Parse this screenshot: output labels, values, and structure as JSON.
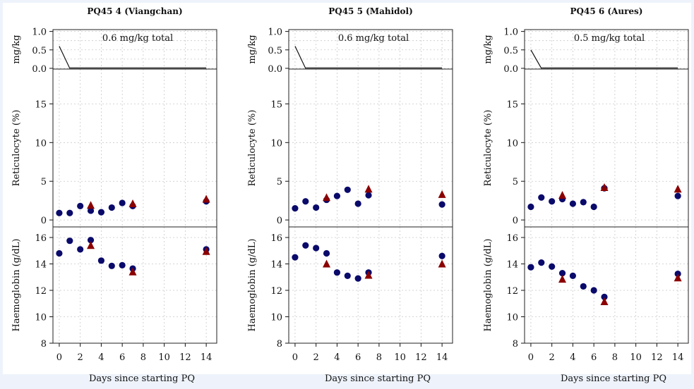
{
  "chart_data": [
    {
      "type": "scatter",
      "title": "PQ45 4 (Viangchan)",
      "xlabel": "Days since starting PQ",
      "x_ticks": [
        0,
        2,
        4,
        6,
        8,
        10,
        12,
        14
      ],
      "xlim": [
        -0.6,
        15
      ],
      "dose": {
        "ylabel": "mg/kg",
        "annotation": "0.6 mg/kg total",
        "ylim": [
          0,
          1.0
        ],
        "y_ticks": [
          "0.0",
          "0.5",
          "1.0"
        ],
        "line": [
          [
            0,
            0.6
          ],
          [
            1,
            0.0
          ],
          [
            14,
            0.0
          ]
        ]
      },
      "reticulocyte": {
        "ylabel": "Reticulocyte (%)",
        "ylim": [
          0,
          19
        ],
        "y_ticks": [
          0,
          5,
          10,
          15
        ],
        "series": [
          {
            "marker": "circle",
            "color": "#0a0a6b",
            "points": [
              [
                0,
                0.9
              ],
              [
                1,
                0.9
              ],
              [
                2,
                1.8
              ],
              [
                3,
                1.2
              ],
              [
                4,
                1.0
              ],
              [
                5,
                1.6
              ],
              [
                6,
                2.2
              ],
              [
                7,
                1.8
              ],
              [
                14,
                2.4
              ]
            ]
          },
          {
            "marker": "triangle",
            "color": "#8b0000",
            "points": [
              [
                3,
                1.9
              ],
              [
                7,
                2.1
              ],
              [
                14,
                2.7
              ]
            ]
          }
        ]
      },
      "haemoglobin": {
        "ylabel": "Haemoglobin (g/dL)",
        "ylim": [
          8,
          16.5
        ],
        "y_ticks": [
          8,
          10,
          12,
          14,
          16
        ],
        "series": [
          {
            "marker": "circle",
            "color": "#0a0a6b",
            "points": [
              [
                0,
                14.8
              ],
              [
                1,
                15.75
              ],
              [
                2,
                15.1
              ],
              [
                3,
                15.8
              ],
              [
                4,
                14.25
              ],
              [
                5,
                13.85
              ],
              [
                6,
                13.9
              ],
              [
                7,
                13.65
              ],
              [
                14,
                15.1
              ]
            ]
          },
          {
            "marker": "triangle",
            "color": "#8b0000",
            "points": [
              [
                3,
                15.4
              ],
              [
                7,
                13.4
              ],
              [
                14,
                14.95
              ]
            ]
          }
        ]
      }
    },
    {
      "type": "scatter",
      "title": "PQ45 5 (Mahidol)",
      "xlabel": "Days since starting PQ",
      "x_ticks": [
        0,
        2,
        4,
        6,
        8,
        10,
        12,
        14
      ],
      "xlim": [
        -0.6,
        15
      ],
      "dose": {
        "ylabel": "mg/kg",
        "annotation": "0.6 mg/kg total",
        "ylim": [
          0,
          1.0
        ],
        "y_ticks": [
          "0.0",
          "0.5",
          "1.0"
        ],
        "line": [
          [
            0,
            0.6
          ],
          [
            1,
            0.0
          ],
          [
            14,
            0.0
          ]
        ]
      },
      "reticulocyte": {
        "ylabel": "Reticulocyte (%)",
        "ylim": [
          0,
          19
        ],
        "y_ticks": [
          0,
          5,
          10,
          15
        ],
        "series": [
          {
            "marker": "circle",
            "color": "#0a0a6b",
            "points": [
              [
                0,
                1.5
              ],
              [
                1,
                2.4
              ],
              [
                2,
                1.6
              ],
              [
                3,
                2.6
              ],
              [
                4,
                3.1
              ],
              [
                5,
                3.9
              ],
              [
                6,
                2.1
              ],
              [
                7,
                3.2
              ],
              [
                14,
                2.0
              ]
            ]
          },
          {
            "marker": "triangle",
            "color": "#8b0000",
            "points": [
              [
                3,
                2.9
              ],
              [
                7,
                4.0
              ],
              [
                14,
                3.3
              ]
            ]
          }
        ]
      },
      "haemoglobin": {
        "ylabel": "Haemoglobin (g/dL)",
        "ylim": [
          8,
          16.5
        ],
        "y_ticks": [
          8,
          10,
          12,
          14,
          16
        ],
        "series": [
          {
            "marker": "circle",
            "color": "#0a0a6b",
            "points": [
              [
                0,
                14.5
              ],
              [
                1,
                15.4
              ],
              [
                2,
                15.2
              ],
              [
                3,
                14.8
              ],
              [
                4,
                13.35
              ],
              [
                5,
                13.1
              ],
              [
                6,
                12.9
              ],
              [
                7,
                13.35
              ],
              [
                14,
                14.6
              ]
            ]
          },
          {
            "marker": "triangle",
            "color": "#8b0000",
            "points": [
              [
                3,
                14.0
              ],
              [
                7,
                13.15
              ],
              [
                14,
                14.0
              ]
            ]
          }
        ]
      }
    },
    {
      "type": "scatter",
      "title": "PQ45 6 (Aures)",
      "xlabel": "Days since starting PQ",
      "x_ticks": [
        0,
        2,
        4,
        6,
        8,
        10,
        12,
        14
      ],
      "xlim": [
        -0.6,
        15
      ],
      "dose": {
        "ylabel": "mg/kg",
        "annotation": "0.5 mg/kg total",
        "ylim": [
          0,
          1.0
        ],
        "y_ticks": [
          "0.0",
          "0.5",
          "1.0"
        ],
        "line": [
          [
            0,
            0.5
          ],
          [
            1,
            0.0
          ],
          [
            14,
            0.0
          ]
        ]
      },
      "reticulocyte": {
        "ylabel": "Reticulocyte (%)",
        "ylim": [
          0,
          19
        ],
        "y_ticks": [
          0,
          5,
          10,
          15
        ],
        "series": [
          {
            "marker": "circle",
            "color": "#0a0a6b",
            "points": [
              [
                0,
                1.7
              ],
              [
                1,
                2.9
              ],
              [
                2,
                2.4
              ],
              [
                3,
                2.7
              ],
              [
                4,
                2.1
              ],
              [
                5,
                2.3
              ],
              [
                6,
                1.7
              ],
              [
                7,
                4.1
              ],
              [
                14,
                3.1
              ]
            ]
          },
          {
            "marker": "triangle",
            "color": "#8b0000",
            "points": [
              [
                3,
                3.2
              ],
              [
                7,
                4.2
              ],
              [
                14,
                4.0
              ]
            ]
          }
        ]
      },
      "haemoglobin": {
        "ylabel": "Haemoglobin (g/dL)",
        "ylim": [
          8,
          16.5
        ],
        "y_ticks": [
          8,
          10,
          12,
          14,
          16
        ],
        "series": [
          {
            "marker": "circle",
            "color": "#0a0a6b",
            "points": [
              [
                0,
                13.75
              ],
              [
                1,
                14.1
              ],
              [
                2,
                13.8
              ],
              [
                3,
                13.3
              ],
              [
                4,
                13.1
              ],
              [
                5,
                12.3
              ],
              [
                6,
                12.0
              ],
              [
                7,
                11.5
              ],
              [
                14,
                13.25
              ]
            ]
          },
          {
            "marker": "triangle",
            "color": "#8b0000",
            "points": [
              [
                3,
                12.85
              ],
              [
                7,
                11.15
              ],
              [
                14,
                12.95
              ]
            ]
          }
        ]
      }
    }
  ]
}
